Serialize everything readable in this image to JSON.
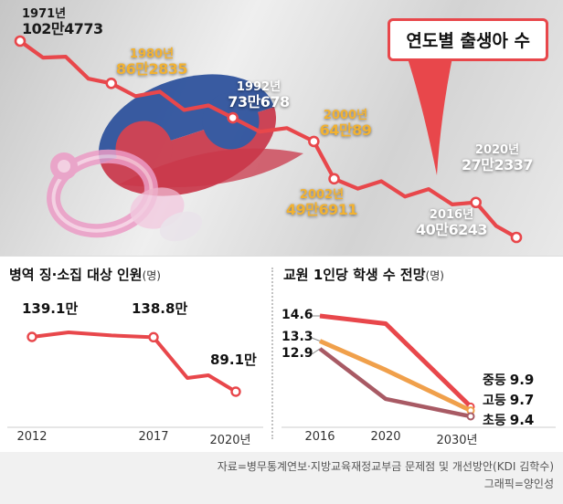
{
  "colors": {
    "line_red": "#e8474b",
    "gold": "#f2b232",
    "orange": "#f0a04b",
    "maroon": "#a85a64",
    "flag_blue": "#2a4f9b",
    "flag_red": "#c9374a",
    "pacifier_pink": "#ec9cc6"
  },
  "callout": {
    "label": "연도별 출생아 수"
  },
  "footer": {
    "source": "자료=병무통계연보·지방교육재정교부금 문제점 및 개선방안(KDI 김학수)",
    "credit": "그래픽=양인성"
  },
  "chart_data": [
    {
      "id": "births-by-year",
      "type": "line",
      "title": "연도별 출생아 수",
      "line_color": "#e8474b",
      "points": [
        {
          "year": 1971,
          "label": "1971년",
          "value": 1024773,
          "value_label": "102만4773",
          "color": "#1a1a1a"
        },
        {
          "year": 1980,
          "label": "1980년",
          "value": 862835,
          "value_label": "86만2835",
          "color": "#f2b232"
        },
        {
          "year": 1992,
          "label": "1992년",
          "value": 730678,
          "value_label": "73만678",
          "color": "#ffffff"
        },
        {
          "year": 2000,
          "label": "2000년",
          "value": 640089,
          "value_label": "64만89",
          "color": "#f2b232"
        },
        {
          "year": 2002,
          "label": "2002년",
          "value": 496911,
          "value_label": "49만6911",
          "color": "#f2b232"
        },
        {
          "year": 2016,
          "label": "2016년",
          "value": 406243,
          "value_label": "40만6243",
          "color": "#ffffff"
        },
        {
          "year": 2020,
          "label": "2020년",
          "value": 272337,
          "value_label": "27만2337",
          "color": "#ffffff"
        }
      ]
    },
    {
      "id": "military-conscription",
      "type": "line",
      "title": "병역 징·소집 대상 인원",
      "unit": "(명)",
      "line_color": "#e8474b",
      "x": [
        2012,
        2017,
        2020
      ],
      "x_labels": [
        "2012",
        "2017",
        "2020년"
      ],
      "values": [
        139.1,
        138.8,
        89.1
      ],
      "value_labels": [
        "139.1만",
        "138.8만",
        "89.1만"
      ]
    },
    {
      "id": "students-per-teacher-forecast",
      "type": "line",
      "title": "교원 1인당 학생 수 전망",
      "unit": "(명)",
      "x": [
        2016,
        2020,
        2030
      ],
      "x_labels": [
        "2016",
        "2020",
        "2030년"
      ],
      "series": [
        {
          "name": "중등",
          "values": [
            14.6,
            14.2,
            9.9
          ],
          "start_label": "14.6",
          "end_label": "9.9",
          "color": "#e8474b"
        },
        {
          "name": "고등",
          "values": [
            13.3,
            11.8,
            9.7
          ],
          "start_label": "13.3",
          "end_label": "9.7",
          "color": "#f0a04b"
        },
        {
          "name": "초등",
          "values": [
            12.9,
            10.3,
            9.4
          ],
          "start_label": "12.9",
          "end_label": "9.4",
          "color": "#a85a64"
        }
      ]
    }
  ]
}
